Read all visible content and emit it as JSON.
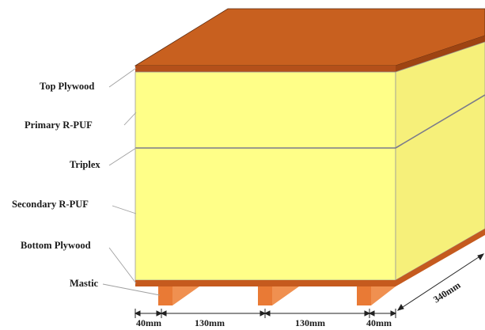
{
  "layers": {
    "top_plywood": "Top Plywood",
    "primary_rpuf": "Primary R-PUF",
    "triplex": "Triplex",
    "secondary_rpuf": "Secondary R-PUF",
    "bottom_plywood": "Bottom Plywood",
    "mastic": "Mastic"
  },
  "dimensions": {
    "edge_left": "40mm",
    "gap_left": "130mm",
    "gap_right": "130mm",
    "edge_right": "40mm",
    "depth": "340mm"
  },
  "colors": {
    "plywood": "#c55a1e",
    "plywood_top": "#c8601f",
    "puf_front": "#ffff88",
    "puf_side": "#f6f07a",
    "mastic": "#e97a35",
    "outline": "#8c8c8c"
  }
}
